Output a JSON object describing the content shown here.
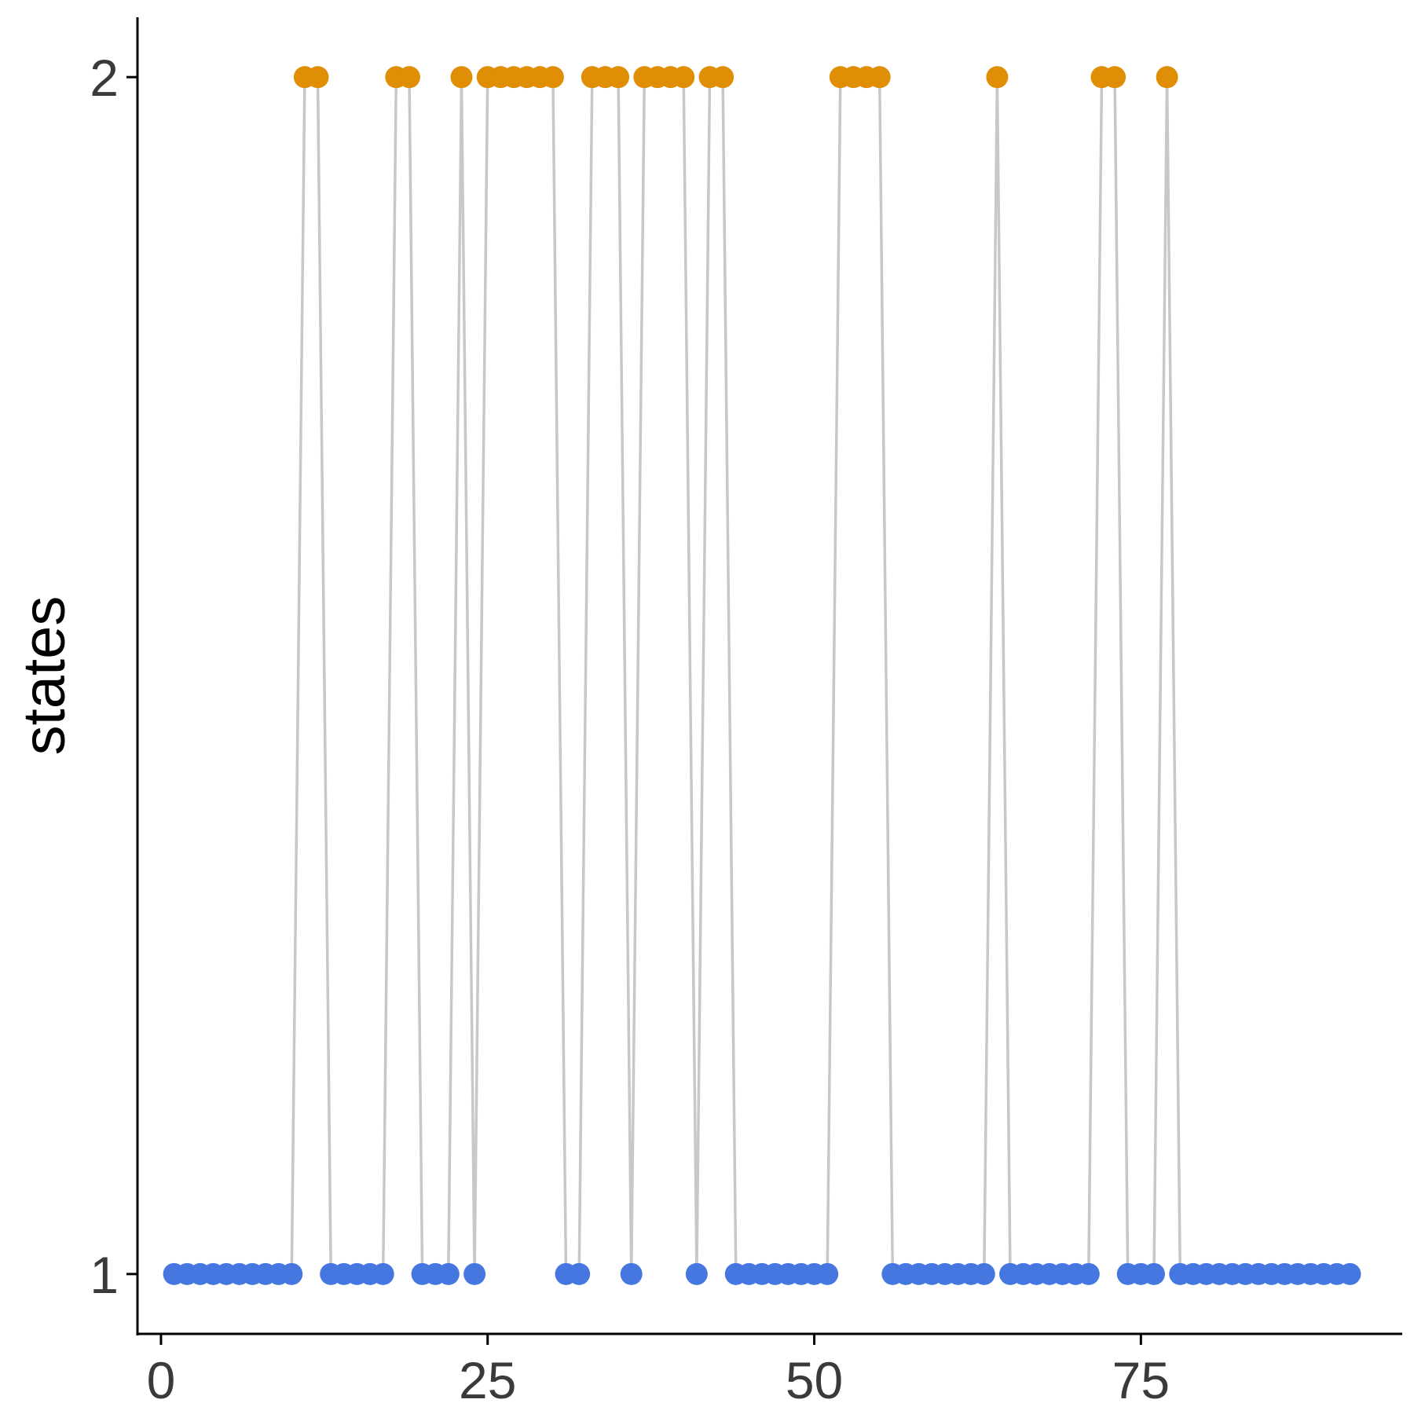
{
  "chart_data": {
    "type": "line",
    "title": "",
    "xlabel": "",
    "ylabel": "states",
    "xlim": [
      -1.8,
      95
    ],
    "ylim": [
      0.95,
      2.05
    ],
    "x_ticks": [
      0,
      25,
      50,
      75
    ],
    "y_ticks": [
      1,
      2
    ],
    "grid": false,
    "legend": "none",
    "line_color": "#c8c8c8",
    "state_colors": {
      "1": "#4677E0",
      "2": "#E08E06"
    },
    "x": [
      1,
      2,
      3,
      4,
      5,
      6,
      7,
      8,
      9,
      10,
      11,
      12,
      13,
      14,
      15,
      16,
      17,
      18,
      19,
      20,
      21,
      22,
      23,
      24,
      25,
      26,
      27,
      28,
      29,
      30,
      31,
      32,
      33,
      34,
      35,
      36,
      37,
      38,
      39,
      40,
      41,
      42,
      43,
      44,
      45,
      46,
      47,
      48,
      49,
      50,
      51,
      52,
      53,
      54,
      55,
      56,
      57,
      58,
      59,
      60,
      61,
      62,
      63,
      64,
      65,
      66,
      67,
      68,
      69,
      70,
      71,
      72,
      73,
      74,
      75,
      76,
      77,
      78,
      79,
      80,
      81,
      82,
      83,
      84,
      85,
      86,
      87,
      88,
      89,
      90,
      91
    ],
    "y": [
      1,
      1,
      1,
      1,
      1,
      1,
      1,
      1,
      1,
      1,
      2,
      2,
      1,
      1,
      1,
      1,
      1,
      2,
      2,
      1,
      1,
      1,
      2,
      1,
      2,
      2,
      2,
      2,
      2,
      2,
      1,
      1,
      2,
      2,
      2,
      1,
      2,
      2,
      2,
      2,
      1,
      2,
      2,
      1,
      1,
      1,
      1,
      1,
      1,
      1,
      1,
      2,
      2,
      2,
      2,
      1,
      1,
      1,
      1,
      1,
      1,
      1,
      1,
      2,
      1,
      1,
      1,
      1,
      1,
      1,
      1,
      2,
      2,
      1,
      1,
      1,
      2,
      1,
      1,
      1,
      1,
      1,
      1,
      1,
      1,
      1,
      1,
      1,
      1,
      1,
      1
    ]
  }
}
